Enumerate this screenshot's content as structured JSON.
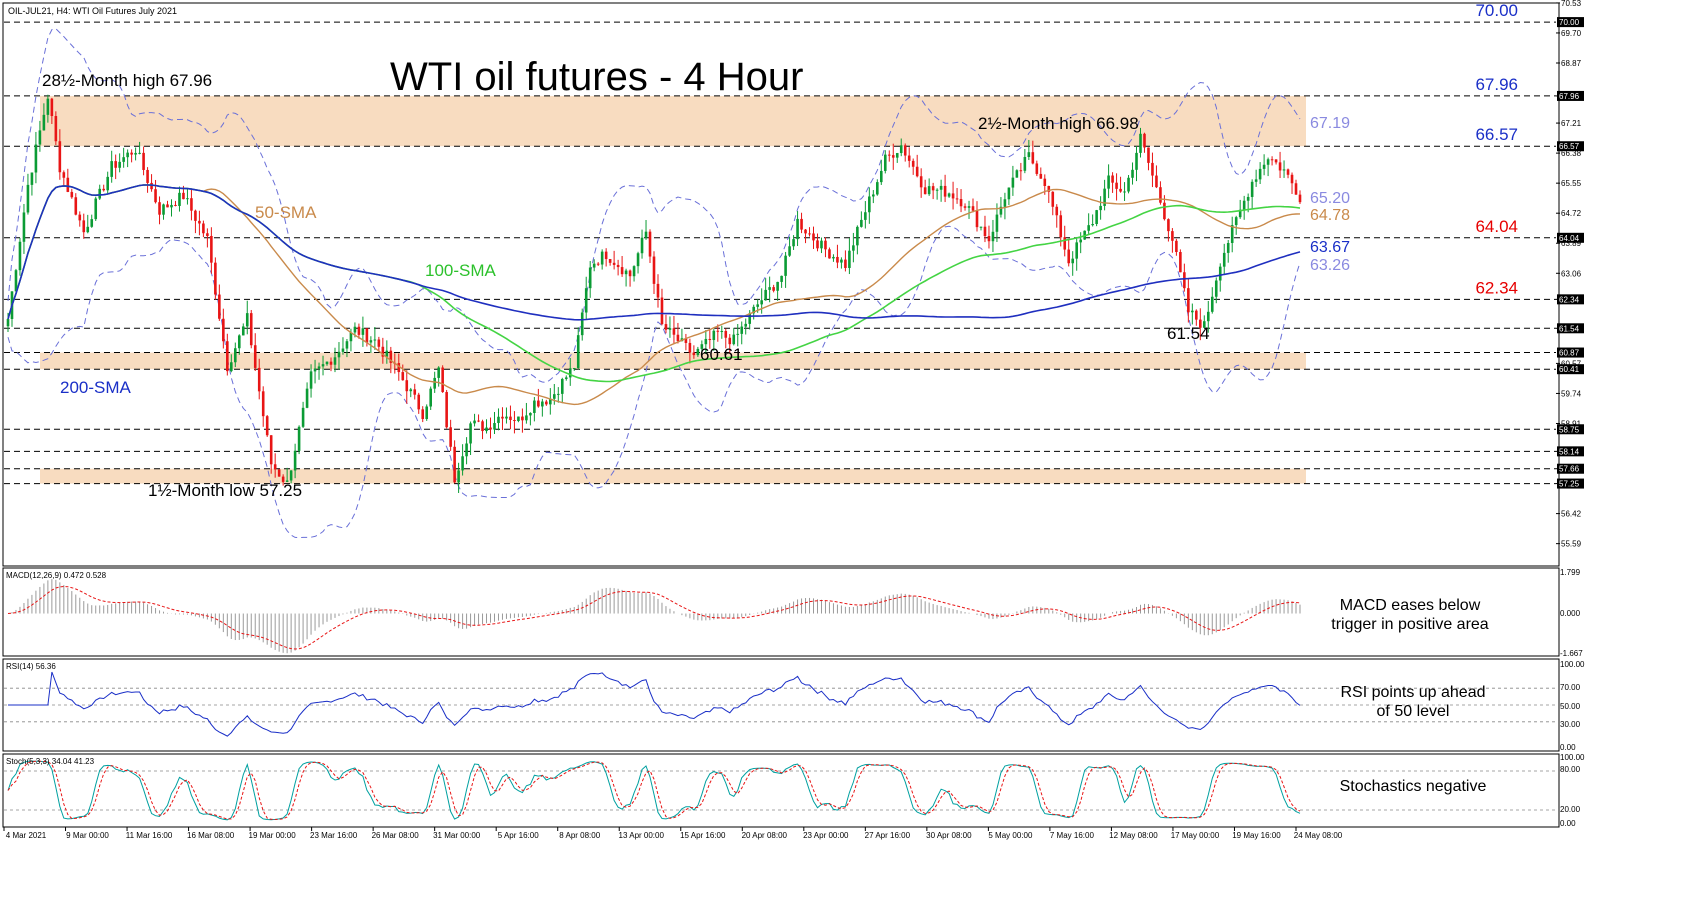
{
  "header": {
    "symbol_line": "OIL-JUL21, H4:  WTI Oil Futures July 2021"
  },
  "chart_data": {
    "type": "candlestick",
    "title": "WTI oil futures - 4 Hour",
    "symbol": "OIL-JUL21",
    "timeframe": "H4",
    "price_range": [
      55.0,
      70.5
    ],
    "price_ticks": [
      "70.53",
      "69.70",
      "68.87",
      "67.96",
      "67.21",
      "66.38",
      "65.55",
      "64.72",
      "63.89",
      "63.06",
      "62.34",
      "61.54",
      "60.57",
      "59.74",
      "58.91",
      "58.14",
      "57.66",
      "57.25",
      "56.42",
      "55.59"
    ],
    "price_tick_values": [
      70.53,
      69.7,
      68.87,
      67.96,
      67.21,
      66.38,
      65.55,
      64.72,
      63.89,
      63.06,
      62.34,
      61.54,
      60.57,
      59.74,
      58.91,
      58.14,
      57.66,
      57.25,
      56.42,
      55.59
    ],
    "tag_levels": [
      {
        "label": "70.00",
        "value": 70.0
      },
      {
        "label": "67.96",
        "value": 67.96
      },
      {
        "label": "66.57",
        "value": 66.57
      },
      {
        "label": "64.04",
        "value": 64.04
      },
      {
        "label": "62.34",
        "value": 62.34
      },
      {
        "label": "61.54",
        "value": 61.54
      },
      {
        "label": "60.87",
        "value": 60.87
      },
      {
        "label": "60.41",
        "value": 60.41
      },
      {
        "label": "58.75",
        "value": 58.75
      },
      {
        "label": "58.14",
        "value": 58.14
      },
      {
        "label": "57.66",
        "value": 57.66
      },
      {
        "label": "57.25",
        "value": 57.25
      }
    ],
    "support_resistance": [
      70.0,
      67.96,
      66.57,
      64.04,
      62.34,
      61.54,
      60.87,
      60.41,
      58.75,
      58.14,
      57.66,
      57.25
    ],
    "zones": [
      {
        "from": 66.57,
        "to": 67.96
      },
      {
        "from": 60.41,
        "to": 60.87
      },
      {
        "from": 57.25,
        "to": 57.66
      }
    ],
    "x_labels": [
      "4 Mar 2021",
      "9 Mar 00:00",
      "11 Mar 16:00",
      "16 Mar 08:00",
      "19 Mar 00:00",
      "23 Mar 16:00",
      "26 Mar 08:00",
      "31 Mar 00:00",
      "5 Apr 16:00",
      "8 Apr 08:00",
      "13 Apr 00:00",
      "15 Apr 16:00",
      "20 Apr 08:00",
      "23 Apr 00:00",
      "27 Apr 16:00",
      "30 Apr 08:00",
      "5 May 00:00",
      "7 May 16:00",
      "12 May 08:00",
      "17 May 00:00",
      "19 May 16:00",
      "24 May 08:00"
    ],
    "close_path": [
      [
        0,
        61.8
      ],
      [
        5,
        65.5
      ],
      [
        10,
        67.96
      ],
      [
        13,
        66.0
      ],
      [
        19,
        64.2
      ],
      [
        26,
        66.0
      ],
      [
        32,
        66.5
      ],
      [
        38,
        64.8
      ],
      [
        44,
        65.2
      ],
      [
        50,
        64.0
      ],
      [
        55,
        60.5
      ],
      [
        60,
        61.8
      ],
      [
        66,
        57.8
      ],
      [
        70,
        57.25
      ],
      [
        76,
        60.2
      ],
      [
        82,
        60.8
      ],
      [
        87,
        61.5
      ],
      [
        92,
        61.2
      ],
      [
        98,
        60.3
      ],
      [
        104,
        59.2
      ],
      [
        108,
        60.4
      ],
      [
        112,
        57.4
      ],
      [
        116,
        58.9
      ],
      [
        120,
        58.8
      ],
      [
        124,
        59.2
      ],
      [
        128,
        59.0
      ],
      [
        132,
        59.5
      ],
      [
        136,
        59.6
      ],
      [
        142,
        60.5
      ],
      [
        146,
        63.3
      ],
      [
        150,
        63.6
      ],
      [
        156,
        63.0
      ],
      [
        160,
        64.2
      ],
      [
        164,
        61.6
      ],
      [
        168,
        61.2
      ],
      [
        172,
        60.8
      ],
      [
        178,
        61.4
      ],
      [
        182,
        61.2
      ],
      [
        188,
        62.2
      ],
      [
        194,
        63.0
      ],
      [
        198,
        64.5
      ],
      [
        204,
        63.8
      ],
      [
        210,
        63.3
      ],
      [
        214,
        64.5
      ],
      [
        220,
        66.2
      ],
      [
        224,
        66.6
      ],
      [
        230,
        65.4
      ],
      [
        236,
        65.3
      ],
      [
        240,
        65.0
      ],
      [
        246,
        64.0
      ],
      [
        250,
        65.2
      ],
      [
        256,
        66.3
      ],
      [
        260,
        65.6
      ],
      [
        266,
        63.4
      ],
      [
        272,
        64.5
      ],
      [
        276,
        65.6
      ],
      [
        280,
        65.3
      ],
      [
        284,
        66.8
      ],
      [
        288,
        65.4
      ],
      [
        292,
        64.0
      ],
      [
        296,
        62.0
      ],
      [
        300,
        61.6
      ],
      [
        304,
        63.4
      ],
      [
        308,
        64.5
      ],
      [
        312,
        65.6
      ],
      [
        316,
        66.3
      ],
      [
        320,
        65.9
      ],
      [
        324,
        65.2
      ]
    ],
    "indicators": {
      "bollinger_band_label": "67.19",
      "sma50": {
        "label": "50-SMA",
        "value_label": "64.78",
        "color": "#c98a4b"
      },
      "sma100": {
        "label": "100-SMA",
        "value_label": "65.20",
        "color": "#44d444"
      },
      "sma200": {
        "label": "200-SMA",
        "value_label": "63.67",
        "color": "#1f2fbf"
      },
      "lower_band_label": "63.26"
    },
    "annotations": [
      {
        "id": "high_28",
        "text": "28½-Month high 67.96"
      },
      {
        "id": "high_2",
        "text": "2½-Month high 66.98"
      },
      {
        "id": "low_15",
        "text": "1½-Month low 57.25"
      },
      {
        "id": "low_6061",
        "text": "60.61"
      },
      {
        "id": "low_6154",
        "text": "61.54"
      }
    ],
    "macd": {
      "label": "MACD(12,26,9) 0.472 0.528",
      "macd": 0.472,
      "signal": 0.528,
      "range": [
        -1.667,
        1.799
      ],
      "ticks": [
        "1.799",
        "0.000",
        "-1.667"
      ],
      "comment": [
        "MACD eases below",
        "trigger in positive area"
      ]
    },
    "rsi": {
      "label": "RSI(14) 56.36",
      "value": 56.36,
      "range": [
        0,
        100
      ],
      "ticks": [
        "100.00",
        "70.00",
        "50.00",
        "30.00",
        "0.00"
      ],
      "comment": [
        "RSI points up ahead",
        "of 50 level"
      ]
    },
    "stochastic": {
      "label": "Stoch(5,3,3) 34.04 41.23",
      "k": 34.04,
      "d": 41.23,
      "range": [
        0,
        100
      ],
      "ticks": [
        "100.00",
        "80.00",
        "20.00",
        "0.00"
      ],
      "comment": [
        "Stochastics negative"
      ]
    }
  },
  "colors": {
    "bull": "#0b9b34",
    "bear": "#e81515",
    "zone": "#f8dcc0",
    "band": "#6a70d8",
    "tag_blue": "#1a2fc7",
    "tag_red": "#e60000",
    "tag_purple": "#8a8ae0",
    "tag_orange": "#c98a4b"
  }
}
